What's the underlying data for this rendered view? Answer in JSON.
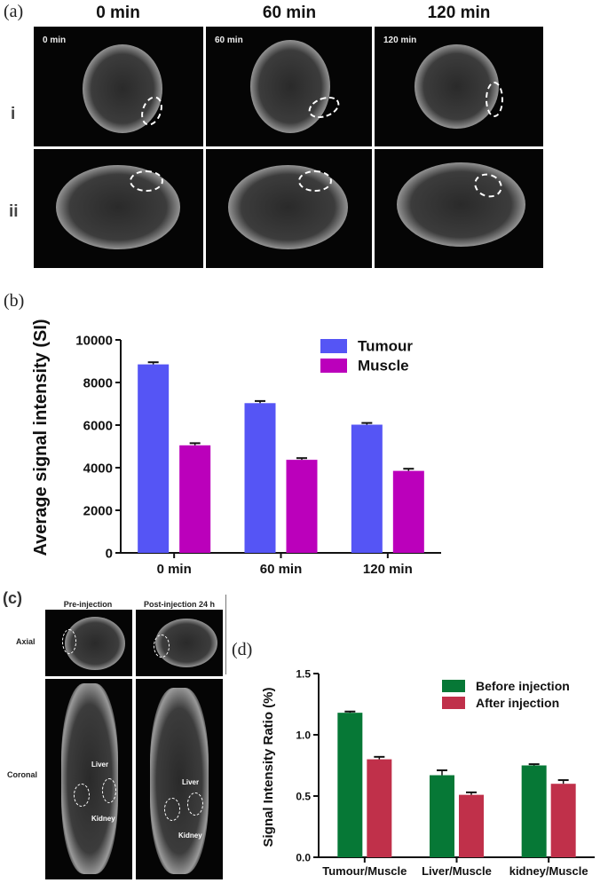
{
  "panel_a": {
    "label": "(a)",
    "columns": [
      "0 min",
      "60 min",
      "120 min"
    ],
    "rows": [
      "i",
      "ii"
    ],
    "image_tags": [
      "0 min",
      "60 min",
      "120 min"
    ]
  },
  "panel_c": {
    "label": "(c)",
    "columns": [
      "Pre-injection",
      "Post-injection 24 h"
    ],
    "rows": [
      "Axial",
      "Coronal"
    ],
    "annotations": {
      "liver": "Liver",
      "kidney": "Kidney"
    }
  },
  "chart_data": [
    {
      "panel_label": "(b)",
      "type": "bar",
      "categories": [
        "0 min",
        "60 min",
        "120 min"
      ],
      "series": [
        {
          "name": "Tumour",
          "color": "#5555f5",
          "values": [
            8850,
            7030,
            6020
          ],
          "errors": [
            100,
            100,
            80
          ]
        },
        {
          "name": "Muscle",
          "color": "#bb00bb",
          "values": [
            5050,
            4370,
            3850
          ],
          "errors": [
            100,
            80,
            100
          ]
        }
      ],
      "ylabel": "Average signal intensity (SI)",
      "xlabel": "",
      "ylim": [
        0,
        10000
      ],
      "yticks": [
        "0",
        "2000",
        "4000",
        "6000",
        "8000",
        "10000"
      ],
      "legend": "top-right",
      "grid": false
    },
    {
      "panel_label": "(d)",
      "type": "bar",
      "categories": [
        "Tumour/Muscle",
        "Liver/Muscle",
        "kidney/Muscle"
      ],
      "series": [
        {
          "name": "Before injection",
          "color": "#067836",
          "values": [
            1.18,
            0.67,
            0.75
          ],
          "errors": [
            0.01,
            0.04,
            0.01
          ]
        },
        {
          "name": "After injection",
          "color": "#c0304a",
          "values": [
            0.8,
            0.51,
            0.6
          ],
          "errors": [
            0.02,
            0.02,
            0.03
          ]
        }
      ],
      "ylabel": "Signal Intensity Ratio (%)",
      "xlabel": "",
      "ylim": [
        0,
        1.5
      ],
      "yticks": [
        "0.0",
        "0.5",
        "1.0",
        "1.5"
      ],
      "legend": "top-right",
      "grid": false
    }
  ]
}
